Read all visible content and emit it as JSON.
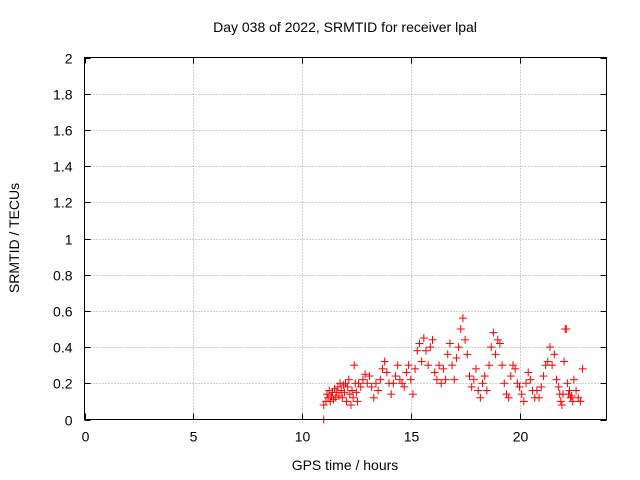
{
  "chart_data": {
    "type": "scatter",
    "title": "Day 038 of 2022, SRMTID for receiver lpal",
    "xlabel": "GPS time / hours",
    "ylabel": "SRMTID / TECUs",
    "xlim": [
      0,
      24
    ],
    "ylim": [
      0,
      2
    ],
    "xticks": [
      0,
      5,
      10,
      15,
      20
    ],
    "yticks": [
      0,
      0.2,
      0.4,
      0.6,
      0.8,
      1,
      1.2,
      1.4,
      1.6,
      1.8,
      2
    ],
    "ytick_labels": [
      "0",
      "0.2",
      "0.4",
      "0.6",
      "0.8",
      "1",
      "1.2",
      "1.4",
      "1.6",
      "1.8",
      "2"
    ],
    "grid": true,
    "marker": "plus",
    "color": "#ff0000",
    "series": [
      {
        "name": "SRMTID",
        "x": [
          11.0,
          11.0,
          11.1,
          11.15,
          11.2,
          11.25,
          11.3,
          11.35,
          11.4,
          11.45,
          11.5,
          11.55,
          11.6,
          11.65,
          11.7,
          11.75,
          11.8,
          11.85,
          11.9,
          11.95,
          12.0,
          12.05,
          12.1,
          12.15,
          12.2,
          12.25,
          12.3,
          12.35,
          12.4,
          12.45,
          12.5,
          12.55,
          12.6,
          12.7,
          12.8,
          12.9,
          13.0,
          13.1,
          13.2,
          13.3,
          13.4,
          13.5,
          13.6,
          13.7,
          13.8,
          13.9,
          14.0,
          14.1,
          14.2,
          14.3,
          14.4,
          14.5,
          14.6,
          14.7,
          14.8,
          14.9,
          15.0,
          15.1,
          15.2,
          15.3,
          15.4,
          15.5,
          15.6,
          15.7,
          15.8,
          15.9,
          16.0,
          16.1,
          16.2,
          16.3,
          16.4,
          16.5,
          16.6,
          16.7,
          16.8,
          16.9,
          17.0,
          17.1,
          17.2,
          17.3,
          17.4,
          17.5,
          17.6,
          17.7,
          17.8,
          17.9,
          18.0,
          18.1,
          18.2,
          18.3,
          18.4,
          18.5,
          18.6,
          18.7,
          18.8,
          18.9,
          19.0,
          19.1,
          19.2,
          19.3,
          19.4,
          19.5,
          19.6,
          19.7,
          19.8,
          19.9,
          20.0,
          20.1,
          20.2,
          20.3,
          20.4,
          20.5,
          20.6,
          20.7,
          20.8,
          20.9,
          21.0,
          21.1,
          21.2,
          21.3,
          21.4,
          21.5,
          21.6,
          21.7,
          21.8,
          21.85,
          21.9,
          21.95,
          22.0,
          22.05,
          22.1,
          22.15,
          22.2,
          22.25,
          22.3,
          22.35,
          22.4,
          22.45,
          22.5,
          22.6,
          22.7,
          22.8,
          22.9
        ],
        "y": [
          0.0,
          0.08,
          0.1,
          0.14,
          0.12,
          0.16,
          0.1,
          0.13,
          0.15,
          0.11,
          0.17,
          0.12,
          0.15,
          0.18,
          0.13,
          0.2,
          0.16,
          0.12,
          0.19,
          0.15,
          0.2,
          0.1,
          0.18,
          0.22,
          0.14,
          0.08,
          0.16,
          0.12,
          0.3,
          0.2,
          0.15,
          0.1,
          0.2,
          0.18,
          0.22,
          0.25,
          0.2,
          0.24,
          0.18,
          0.12,
          0.2,
          0.16,
          0.22,
          0.28,
          0.32,
          0.26,
          0.2,
          0.14,
          0.2,
          0.24,
          0.3,
          0.22,
          0.2,
          0.18,
          0.26,
          0.3,
          0.22,
          0.14,
          0.28,
          0.38,
          0.42,
          0.32,
          0.45,
          0.38,
          0.3,
          0.4,
          0.44,
          0.26,
          0.22,
          0.3,
          0.2,
          0.28,
          0.22,
          0.36,
          0.42,
          0.3,
          0.22,
          0.34,
          0.4,
          0.5,
          0.56,
          0.44,
          0.36,
          0.24,
          0.18,
          0.22,
          0.28,
          0.16,
          0.12,
          0.2,
          0.24,
          0.16,
          0.3,
          0.4,
          0.48,
          0.36,
          0.44,
          0.42,
          0.3,
          0.2,
          0.14,
          0.12,
          0.24,
          0.3,
          0.28,
          0.2,
          0.18,
          0.14,
          0.1,
          0.2,
          0.26,
          0.22,
          0.16,
          0.12,
          0.16,
          0.12,
          0.18,
          0.24,
          0.3,
          0.32,
          0.4,
          0.3,
          0.36,
          0.22,
          0.18,
          0.14,
          0.1,
          0.08,
          0.14,
          0.32,
          0.5,
          0.5,
          0.2,
          0.14,
          0.16,
          0.12,
          0.13,
          0.1,
          0.22,
          0.16,
          0.12,
          0.1,
          0.28
        ]
      }
    ]
  }
}
